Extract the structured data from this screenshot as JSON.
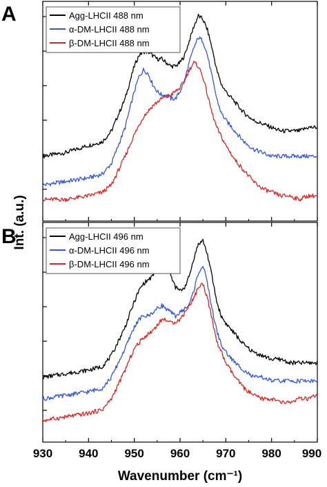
{
  "chart_data": [
    {
      "panel": "A",
      "type": "line",
      "xlabel": "Wavenumber (cm⁻¹)",
      "ylabel": "Int. (a.u.)",
      "xlim": [
        930,
        990
      ],
      "xticks": [
        930,
        940,
        950,
        960,
        970,
        980,
        990
      ],
      "yticks_labeled": false,
      "legend_position": "top-left",
      "series": [
        {
          "name": "Agg-LHCII 488 nm",
          "color": "#000000",
          "x": [
            930,
            935,
            940,
            943,
            945,
            948,
            950,
            951,
            952,
            953,
            954,
            955,
            956,
            957,
            958,
            959,
            960,
            961,
            962,
            963,
            964,
            965,
            966,
            967,
            968,
            969,
            970,
            972,
            974,
            976,
            978,
            980,
            982,
            984,
            986,
            988,
            990
          ],
          "y": [
            0.6,
            0.61,
            0.63,
            0.64,
            0.67,
            0.76,
            0.85,
            0.88,
            0.89,
            0.89,
            0.88,
            0.87,
            0.87,
            0.86,
            0.85,
            0.85,
            0.86,
            0.88,
            0.92,
            0.96,
            0.99,
            0.98,
            0.95,
            0.9,
            0.84,
            0.8,
            0.78,
            0.75,
            0.72,
            0.7,
            0.69,
            0.68,
            0.67,
            0.67,
            0.67,
            0.68,
            0.68
          ]
        },
        {
          "name": "α-DM-LHCII 488 nm",
          "color": "#3355dd",
          "x": [
            930,
            935,
            940,
            943,
            945,
            948,
            950,
            951,
            952,
            953,
            954,
            955,
            956,
            957,
            958,
            959,
            960,
            961,
            962,
            963,
            964,
            965,
            966,
            967,
            968,
            969,
            970,
            972,
            974,
            976,
            978,
            980,
            982,
            984,
            986,
            988,
            990
          ],
          "y": [
            0.52,
            0.53,
            0.54,
            0.55,
            0.58,
            0.68,
            0.78,
            0.82,
            0.84,
            0.83,
            0.8,
            0.78,
            0.77,
            0.77,
            0.76,
            0.76,
            0.78,
            0.81,
            0.86,
            0.9,
            0.93,
            0.92,
            0.88,
            0.82,
            0.76,
            0.72,
            0.7,
            0.67,
            0.64,
            0.62,
            0.61,
            0.6,
            0.6,
            0.6,
            0.6,
            0.6,
            0.6
          ]
        },
        {
          "name": "β-DM-LHCII 488 nm",
          "color": "#dd2222",
          "x": [
            930,
            935,
            940,
            943,
            945,
            948,
            950,
            952,
            954,
            956,
            958,
            960,
            961,
            962,
            963,
            964,
            965,
            966,
            967,
            968,
            970,
            972,
            974,
            976,
            978,
            980,
            982,
            984,
            986,
            988,
            990
          ],
          "y": [
            0.48,
            0.48,
            0.49,
            0.5,
            0.52,
            0.6,
            0.66,
            0.71,
            0.74,
            0.76,
            0.77,
            0.79,
            0.81,
            0.84,
            0.86,
            0.85,
            0.82,
            0.77,
            0.72,
            0.68,
            0.63,
            0.59,
            0.56,
            0.53,
            0.51,
            0.5,
            0.49,
            0.49,
            0.48,
            0.49,
            0.49
          ]
        }
      ]
    },
    {
      "panel": "B",
      "type": "line",
      "xlabel": "Wavenumber (cm⁻¹)",
      "ylabel": "Int. (a.u.)",
      "xlim": [
        930,
        990
      ],
      "xticks": [
        930,
        940,
        950,
        960,
        970,
        980,
        990
      ],
      "yticks_labeled": false,
      "legend_position": "top-left",
      "series": [
        {
          "name": "Agg-LHCII 496 nm",
          "color": "#000000",
          "x": [
            930,
            935,
            940,
            943,
            945,
            948,
            950,
            951,
            952,
            953,
            954,
            955,
            956,
            957,
            958,
            959,
            960,
            961,
            962,
            963,
            964,
            965,
            966,
            967,
            968,
            969,
            970,
            972,
            974,
            976,
            978,
            980,
            982,
            984,
            986,
            988,
            990
          ],
          "y": [
            0.6,
            0.61,
            0.62,
            0.63,
            0.66,
            0.74,
            0.81,
            0.84,
            0.86,
            0.87,
            0.88,
            0.91,
            0.93,
            0.92,
            0.88,
            0.85,
            0.84,
            0.85,
            0.88,
            0.93,
            0.97,
            0.98,
            0.94,
            0.88,
            0.81,
            0.77,
            0.75,
            0.72,
            0.69,
            0.67,
            0.66,
            0.65,
            0.65,
            0.64,
            0.64,
            0.64,
            0.64
          ]
        },
        {
          "name": "α-DM-LHCII 496 nm",
          "color": "#3355dd",
          "x": [
            930,
            935,
            940,
            943,
            945,
            948,
            950,
            951,
            952,
            953,
            954,
            955,
            956,
            957,
            958,
            959,
            960,
            961,
            962,
            963,
            964,
            965,
            966,
            967,
            968,
            969,
            970,
            972,
            974,
            976,
            978,
            980,
            982,
            984,
            986,
            988,
            990
          ],
          "y": [
            0.54,
            0.55,
            0.56,
            0.57,
            0.6,
            0.68,
            0.74,
            0.76,
            0.77,
            0.77,
            0.78,
            0.79,
            0.8,
            0.79,
            0.78,
            0.77,
            0.78,
            0.79,
            0.8,
            0.84,
            0.89,
            0.91,
            0.86,
            0.79,
            0.73,
            0.69,
            0.67,
            0.64,
            0.62,
            0.6,
            0.6,
            0.59,
            0.59,
            0.59,
            0.59,
            0.59,
            0.59
          ]
        },
        {
          "name": "β-DM-LHCII 496 nm",
          "color": "#dd2222",
          "x": [
            930,
            935,
            940,
            943,
            945,
            948,
            950,
            952,
            954,
            956,
            957,
            958,
            960,
            961,
            962,
            963,
            964,
            965,
            966,
            967,
            968,
            970,
            972,
            974,
            976,
            978,
            980,
            982,
            984,
            986,
            988,
            990
          ],
          "y": [
            0.48,
            0.49,
            0.5,
            0.51,
            0.54,
            0.62,
            0.68,
            0.71,
            0.73,
            0.76,
            0.76,
            0.75,
            0.76,
            0.78,
            0.8,
            0.82,
            0.85,
            0.86,
            0.82,
            0.76,
            0.7,
            0.64,
            0.6,
            0.57,
            0.55,
            0.54,
            0.54,
            0.53,
            0.53,
            0.54,
            0.54,
            0.55
          ]
        }
      ]
    }
  ]
}
